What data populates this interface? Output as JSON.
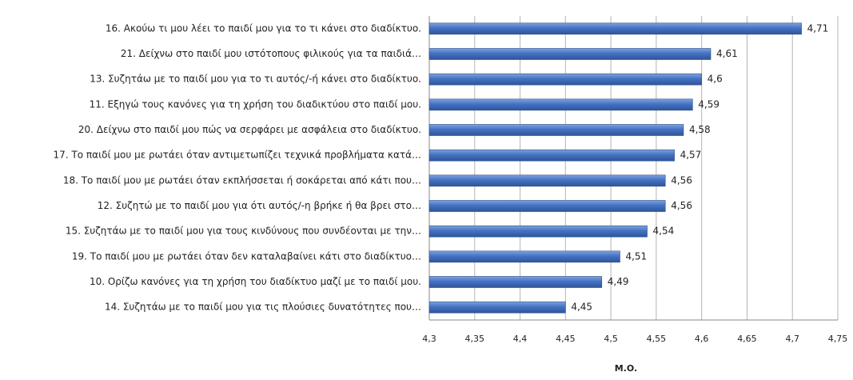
{
  "chart_data": {
    "type": "bar",
    "orientation": "horizontal",
    "categories": [
      "16. Ακούω τι μου λέει το παιδί μου για το τι κάνει στο διαδίκτυο.",
      "21. Δείχνω στο παιδί μου ιστότοπους φιλικούς για τα παιδιά…",
      "13. Συζητάω με το παιδί μου για το τι αυτός/-ή  κάνει στο διαδίκτυο.",
      "11. Εξηγώ τους κανόνες για τη χρήση του διαδικτύου στο παιδί μου.",
      "20. Δείχνω στο παιδί μου πώς να σερφάρει με ασφάλεια  στο διαδίκτυο.",
      "17. Το παιδί μου με ρωτάει όταν αντιμετωπίζει τεχνικά προβλήματα  κατά…",
      "18. Το παιδί μου με ρωτάει όταν εκπλήσσεται ή σοκάρεται από κάτι που…",
      "12. Συζητώ με το παιδί μου για ότι αυτός/-η  βρήκε ή θα βρει στο…",
      "15. Συζητάω με το παιδί μου για τους κινδύνους που συνδέονται με την…",
      "19. Το παιδί μου με ρωτάει όταν δεν καταλαβαίνει κάτι στο διαδίκτυο…",
      "10. Ορίζω κανόνες για τη χρήση του διαδίκτυο μαζί με το παιδί μου.",
      "14. Συζητάω με το παιδί μου για τις πλούσιες δυνατότητες που…"
    ],
    "values": [
      4.71,
      4.61,
      4.6,
      4.59,
      4.58,
      4.57,
      4.56,
      4.56,
      4.54,
      4.51,
      4.49,
      4.45
    ],
    "value_labels": [
      "4,71",
      "4,61",
      "4,6",
      "4,59",
      "4,58",
      "4,57",
      "4,56",
      "4,56",
      "4,54",
      "4,51",
      "4,49",
      "4,45"
    ],
    "color": "#4472c4",
    "xlabel": "M.O.",
    "xlim": [
      4.3,
      4.75
    ],
    "xticks": [
      {
        "value": 4.3,
        "label": "4,3"
      },
      {
        "value": 4.35,
        "label": "4,35"
      },
      {
        "value": 4.4,
        "label": "4,4"
      },
      {
        "value": 4.45,
        "label": "4,45"
      },
      {
        "value": 4.5,
        "label": "4,5"
      },
      {
        "value": 4.55,
        "label": "4,55"
      },
      {
        "value": 4.6,
        "label": "4,6"
      },
      {
        "value": 4.65,
        "label": "4,65"
      },
      {
        "value": 4.7,
        "label": "4,7"
      },
      {
        "value": 4.75,
        "label": "4,75"
      }
    ],
    "grid": true
  }
}
